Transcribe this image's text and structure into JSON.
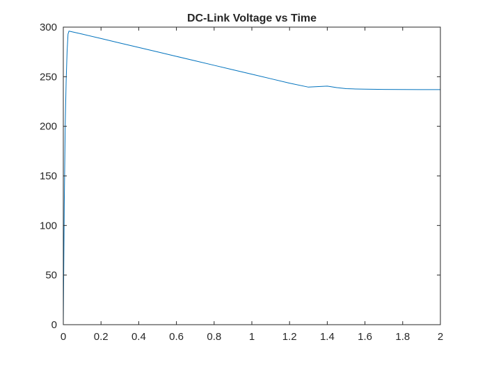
{
  "chart_data": {
    "type": "line",
    "title": "DC-Link Voltage vs Time",
    "xlabel": "",
    "ylabel": "",
    "xlim": [
      0,
      2
    ],
    "ylim": [
      0,
      300
    ],
    "xticks": [
      0,
      0.2,
      0.4,
      0.6,
      0.8,
      1,
      1.2,
      1.4,
      1.6,
      1.8,
      2
    ],
    "xtick_labels": [
      "0",
      "0.2",
      "0.4",
      "0.6",
      "0.8",
      "1",
      "1.2",
      "1.4",
      "1.6",
      "1.8",
      "2"
    ],
    "yticks": [
      0,
      50,
      100,
      150,
      200,
      250,
      300
    ],
    "ytick_labels": [
      "0",
      "50",
      "100",
      "150",
      "200",
      "250",
      "300"
    ],
    "grid": false,
    "legend": "none",
    "box": true,
    "series": [
      {
        "color": "#0072BD",
        "x": [
          0,
          0.005,
          0.01,
          0.015,
          0.02,
          0.025,
          0.03,
          0.1,
          0.2,
          0.3,
          0.4,
          0.5,
          0.6,
          0.7,
          0.8,
          0.9,
          1.0,
          1.1,
          1.2,
          1.3,
          1.4,
          1.45,
          1.5,
          1.55,
          1.6,
          1.7,
          1.8,
          1.9,
          2.0
        ],
        "y": [
          0,
          120,
          200,
          245,
          275,
          293,
          296,
          293,
          288.5,
          284,
          279.5,
          275,
          270.5,
          266,
          261.5,
          257,
          252.5,
          248,
          243.5,
          239.5,
          240.5,
          239,
          238,
          237.6,
          237.4,
          237.2,
          237.1,
          237.0,
          237.0
        ]
      }
    ]
  }
}
